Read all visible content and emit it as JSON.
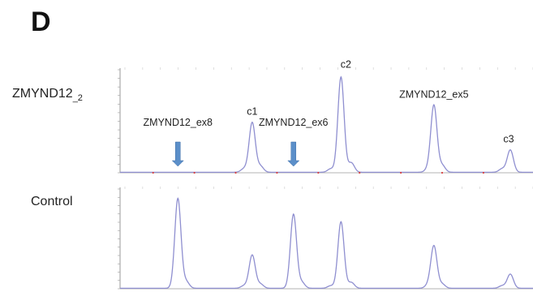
{
  "panel_label": "D",
  "rows": [
    {
      "label_main": "ZMYND12",
      "label_sub": "_2"
    },
    {
      "label_main": "Control",
      "label_sub": ""
    }
  ],
  "colors": {
    "trace": "#8f8fd0",
    "axis": "#9a9a9a",
    "arrow": "#5b8fc9",
    "marker": "#d94040",
    "grid": "#c9c9c9"
  },
  "chart_data": [
    {
      "type": "line",
      "name": "ZMYND12_2",
      "x_range": [
        0,
        100
      ],
      "y_range": [
        0,
        120
      ],
      "peaks": [
        {
          "label": "ZMYND12_ex8",
          "x": 14,
          "height": 0,
          "arrow": true
        },
        {
          "label": "c1",
          "x": 32,
          "height": 58
        },
        {
          "label": "ZMYND12_ex6",
          "x": 42,
          "height": 0,
          "arrow": true
        },
        {
          "label": "c2",
          "x": 53.5,
          "height": 111
        },
        {
          "label": "ZMYND12_ex5",
          "x": 76,
          "height": 78
        },
        {
          "label": "c3",
          "x": 94.5,
          "height": 26
        }
      ],
      "minor_peaks": [
        {
          "x": 30,
          "height": 4
        },
        {
          "x": 34,
          "height": 7
        },
        {
          "x": 51,
          "height": 4
        },
        {
          "x": 56,
          "height": 11
        },
        {
          "x": 74.5,
          "height": 3
        },
        {
          "x": 78,
          "height": 8
        },
        {
          "x": 92.5,
          "height": 4
        }
      ]
    },
    {
      "type": "line",
      "name": "Control",
      "x_range": [
        0,
        100
      ],
      "y_range": [
        0,
        120
      ],
      "peaks": [
        {
          "x": 14,
          "height": 108
        },
        {
          "x": 32,
          "height": 40
        },
        {
          "x": 42,
          "height": 89
        },
        {
          "x": 53.5,
          "height": 80
        },
        {
          "x": 76,
          "height": 51
        },
        {
          "x": 94.5,
          "height": 17
        }
      ],
      "minor_peaks": [
        {
          "x": 16,
          "height": 8
        },
        {
          "x": 30,
          "height": 3
        },
        {
          "x": 34,
          "height": 5
        },
        {
          "x": 44,
          "height": 7
        },
        {
          "x": 51,
          "height": 3
        },
        {
          "x": 56,
          "height": 7
        },
        {
          "x": 74.5,
          "height": 3
        },
        {
          "x": 78,
          "height": 5
        },
        {
          "x": 92.5,
          "height": 3
        }
      ]
    }
  ]
}
